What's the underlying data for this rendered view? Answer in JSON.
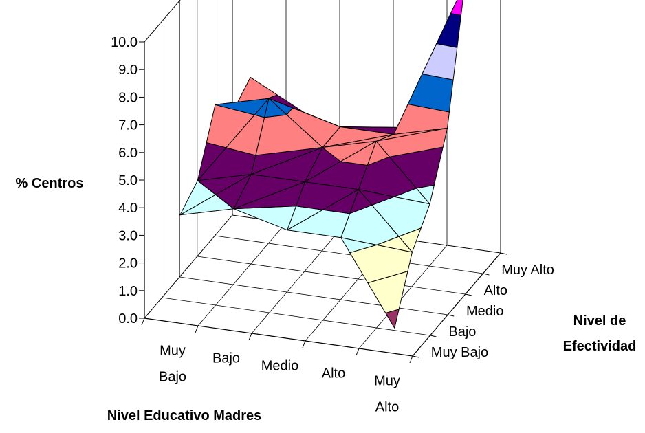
{
  "chart_data": {
    "type": "surface",
    "title": "",
    "zlabel": "% Centros",
    "xlabel": "Nivel Educativo Madres",
    "ylabel_line1": "Nivel de",
    "ylabel_line2": "Efectividad",
    "zlim": [
      0,
      10
    ],
    "z_ticks": [
      "0.0",
      "1.0",
      "2.0",
      "3.0",
      "4.0",
      "5.0",
      "6.0",
      "7.0",
      "8.0",
      "9.0",
      "10.0"
    ],
    "x_categories": [
      [
        "Muy",
        "Bajo"
      ],
      [
        "Bajo"
      ],
      [
        "Medio"
      ],
      [
        "Alto"
      ],
      [
        "Muy",
        "Alto"
      ]
    ],
    "y_categories": [
      "Muy Bajo",
      "Bajo",
      "Medio",
      "Alto",
      "Muy Alto"
    ],
    "grid": true,
    "bands": [
      {
        "range": [
          0,
          1
        ],
        "color": "#993366"
      },
      {
        "range": [
          1,
          2
        ],
        "color": "#FFFFCC"
      },
      {
        "range": [
          2,
          3
        ],
        "color": "#FFFFCC"
      },
      {
        "range": [
          3,
          4
        ],
        "color": "#CCFFFF"
      },
      {
        "range": [
          4,
          5
        ],
        "color": "#660066"
      },
      {
        "range": [
          5,
          6
        ],
        "color": "#FF8080"
      },
      {
        "range": [
          6,
          7
        ],
        "color": "#0066CC"
      },
      {
        "range": [
          7,
          8
        ],
        "color": "#CCCCFF"
      },
      {
        "range": [
          8,
          9
        ],
        "color": "#000080"
      },
      {
        "range": [
          9,
          10
        ],
        "color": "#FF00FF"
      }
    ],
    "values": [
      [
        3.5,
        4.0,
        6.0,
        5.0,
        5.5
      ],
      [
        4.0,
        4.5,
        6.5,
        5.5,
        4.5
      ],
      [
        3.5,
        4.5,
        5.0,
        5.0,
        4.0
      ],
      [
        3.5,
        4.5,
        5.5,
        5.0,
        4.5
      ],
      [
        0.5,
        2.5,
        3.5,
        5.5,
        10.0
      ]
    ]
  }
}
